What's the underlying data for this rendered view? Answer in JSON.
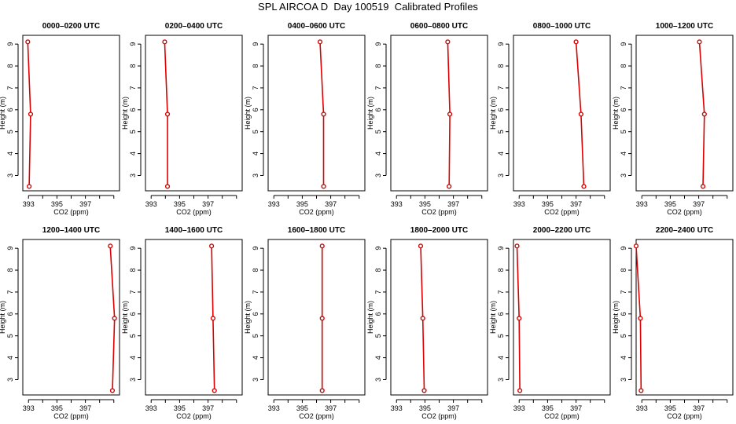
{
  "title": "SPL AIRCOA D  Day 100519  Calibrated Profiles",
  "colors": {
    "profile": "#dd0000",
    "axis": "#000000",
    "background": "#ffffff"
  },
  "chart_data": [
    {
      "type": "line",
      "title": "0000–0200 UTC",
      "xlabel": "CO2 (ppm)",
      "ylabel": "Height (m)",
      "xlim": [
        392.6,
        399.4
      ],
      "ylim": [
        2.3,
        9.4
      ],
      "xticks": [
        393,
        394,
        395,
        396,
        397,
        398,
        399
      ],
      "xticklabels": [
        "393",
        "",
        "395",
        "",
        "397",
        "",
        ""
      ],
      "yticks": [
        3,
        4,
        5,
        6,
        7,
        8,
        9
      ],
      "series": [
        {
          "points": [
            {
              "x": 393.05,
              "y": 2.5
            },
            {
              "x": 393.15,
              "y": 5.8
            },
            {
              "x": 392.95,
              "y": 9.1
            }
          ]
        }
      ]
    },
    {
      "type": "line",
      "title": "0200–0400 UTC",
      "xlabel": "CO2 (ppm)",
      "ylabel": "Height (m)",
      "xlim": [
        392.6,
        399.4
      ],
      "ylim": [
        2.3,
        9.4
      ],
      "xticks": [
        393,
        394,
        395,
        396,
        397,
        398,
        399
      ],
      "xticklabels": [
        "393",
        "",
        "395",
        "",
        "397",
        "",
        ""
      ],
      "yticks": [
        3,
        4,
        5,
        6,
        7,
        8,
        9
      ],
      "series": [
        {
          "points": [
            {
              "x": 394.15,
              "y": 2.5
            },
            {
              "x": 394.15,
              "y": 5.8
            },
            {
              "x": 393.95,
              "y": 9.1
            }
          ]
        }
      ]
    },
    {
      "type": "line",
      "title": "0400–0600 UTC",
      "xlabel": "CO2 (ppm)",
      "ylabel": "Height (m)",
      "xlim": [
        392.6,
        399.4
      ],
      "ylim": [
        2.3,
        9.4
      ],
      "xticks": [
        393,
        394,
        395,
        396,
        397,
        398,
        399
      ],
      "xticklabels": [
        "393",
        "",
        "395",
        "",
        "397",
        "",
        ""
      ],
      "yticks": [
        3,
        4,
        5,
        6,
        7,
        8,
        9
      ],
      "series": [
        {
          "points": [
            {
              "x": 396.5,
              "y": 2.5
            },
            {
              "x": 396.5,
              "y": 5.8
            },
            {
              "x": 396.25,
              "y": 9.1
            }
          ]
        }
      ]
    },
    {
      "type": "line",
      "title": "0600–0800 UTC",
      "xlabel": "CO2 (ppm)",
      "ylabel": "Height (m)",
      "xlim": [
        392.6,
        399.4
      ],
      "ylim": [
        2.3,
        9.4
      ],
      "xticks": [
        393,
        394,
        395,
        396,
        397,
        398,
        399
      ],
      "xticklabels": [
        "393",
        "",
        "395",
        "",
        "397",
        "",
        ""
      ],
      "yticks": [
        3,
        4,
        5,
        6,
        7,
        8,
        9
      ],
      "series": [
        {
          "points": [
            {
              "x": 396.7,
              "y": 2.5
            },
            {
              "x": 396.75,
              "y": 5.8
            },
            {
              "x": 396.6,
              "y": 9.1
            }
          ]
        }
      ]
    },
    {
      "type": "line",
      "title": "0800–1000 UTC",
      "xlabel": "CO2 (ppm)",
      "ylabel": "Height (m)",
      "xlim": [
        392.6,
        399.4
      ],
      "ylim": [
        2.3,
        9.4
      ],
      "xticks": [
        393,
        394,
        395,
        396,
        397,
        398,
        399
      ],
      "xticklabels": [
        "393",
        "",
        "395",
        "",
        "397",
        "",
        ""
      ],
      "yticks": [
        3,
        4,
        5,
        6,
        7,
        8,
        9
      ],
      "series": [
        {
          "points": [
            {
              "x": 397.55,
              "y": 2.5
            },
            {
              "x": 397.35,
              "y": 5.8
            },
            {
              "x": 397.0,
              "y": 9.1
            }
          ]
        }
      ]
    },
    {
      "type": "line",
      "title": "1000–1200 UTC",
      "xlabel": "CO2 (ppm)",
      "ylabel": "Height (m)",
      "xlim": [
        392.6,
        399.4
      ],
      "ylim": [
        2.3,
        9.4
      ],
      "xticks": [
        393,
        394,
        395,
        396,
        397,
        398,
        399
      ],
      "xticklabels": [
        "393",
        "",
        "395",
        "",
        "397",
        "",
        ""
      ],
      "yticks": [
        3,
        4,
        5,
        6,
        7,
        8,
        9
      ],
      "series": [
        {
          "points": [
            {
              "x": 397.3,
              "y": 2.5
            },
            {
              "x": 397.4,
              "y": 5.8
            },
            {
              "x": 397.05,
              "y": 9.1
            }
          ]
        }
      ]
    },
    {
      "type": "line",
      "title": "1200–1400 UTC",
      "xlabel": "CO2 (ppm)",
      "ylabel": "Height (m)",
      "xlim": [
        392.6,
        399.4
      ],
      "ylim": [
        2.3,
        9.4
      ],
      "xticks": [
        393,
        394,
        395,
        396,
        397,
        398,
        399
      ],
      "xticklabels": [
        "393",
        "",
        "395",
        "",
        "397",
        "",
        ""
      ],
      "yticks": [
        3,
        4,
        5,
        6,
        7,
        8,
        9
      ],
      "series": [
        {
          "points": [
            {
              "x": 398.9,
              "y": 2.5
            },
            {
              "x": 399.05,
              "y": 5.8
            },
            {
              "x": 398.75,
              "y": 9.1
            }
          ]
        }
      ]
    },
    {
      "type": "line",
      "title": "1400–1600 UTC",
      "xlabel": "CO2 (ppm)",
      "ylabel": "Height (m)",
      "xlim": [
        392.6,
        399.4
      ],
      "ylim": [
        2.3,
        9.4
      ],
      "xticks": [
        393,
        394,
        395,
        396,
        397,
        398,
        399
      ],
      "xticklabels": [
        "393",
        "",
        "395",
        "",
        "397",
        "",
        ""
      ],
      "yticks": [
        3,
        4,
        5,
        6,
        7,
        8,
        9
      ],
      "series": [
        {
          "points": [
            {
              "x": 397.45,
              "y": 2.5
            },
            {
              "x": 397.35,
              "y": 5.8
            },
            {
              "x": 397.25,
              "y": 9.1
            }
          ]
        }
      ]
    },
    {
      "type": "line",
      "title": "1600–1800 UTC",
      "xlabel": "CO2 (ppm)",
      "ylabel": "Height (m)",
      "xlim": [
        392.6,
        399.4
      ],
      "ylim": [
        2.3,
        9.4
      ],
      "xticks": [
        393,
        394,
        395,
        396,
        397,
        398,
        399
      ],
      "xticklabels": [
        "393",
        "",
        "395",
        "",
        "397",
        "",
        ""
      ],
      "yticks": [
        3,
        4,
        5,
        6,
        7,
        8,
        9
      ],
      "series": [
        {
          "points": [
            {
              "x": 396.4,
              "y": 2.5
            },
            {
              "x": 396.4,
              "y": 5.8
            },
            {
              "x": 396.4,
              "y": 9.1
            }
          ]
        }
      ]
    },
    {
      "type": "line",
      "title": "1800–2000 UTC",
      "xlabel": "CO2 (ppm)",
      "ylabel": "Height (m)",
      "xlim": [
        392.6,
        399.4
      ],
      "ylim": [
        2.3,
        9.4
      ],
      "xticks": [
        393,
        394,
        395,
        396,
        397,
        398,
        399
      ],
      "xticklabels": [
        "393",
        "",
        "395",
        "",
        "397",
        "",
        ""
      ],
      "yticks": [
        3,
        4,
        5,
        6,
        7,
        8,
        9
      ],
      "series": [
        {
          "points": [
            {
              "x": 394.95,
              "y": 2.5
            },
            {
              "x": 394.85,
              "y": 5.8
            },
            {
              "x": 394.7,
              "y": 9.1
            }
          ]
        }
      ]
    },
    {
      "type": "line",
      "title": "2000–2200 UTC",
      "xlabel": "CO2 (ppm)",
      "ylabel": "Height (m)",
      "xlim": [
        392.6,
        399.4
      ],
      "ylim": [
        2.3,
        9.4
      ],
      "xticks": [
        393,
        394,
        395,
        396,
        397,
        398,
        399
      ],
      "xticklabels": [
        "393",
        "",
        "395",
        "",
        "397",
        "",
        ""
      ],
      "yticks": [
        3,
        4,
        5,
        6,
        7,
        8,
        9
      ],
      "series": [
        {
          "points": [
            {
              "x": 393.05,
              "y": 2.5
            },
            {
              "x": 393.0,
              "y": 5.8
            },
            {
              "x": 392.85,
              "y": 9.1
            }
          ]
        }
      ]
    },
    {
      "type": "line",
      "title": "2200–2400 UTC",
      "xlabel": "CO2 (ppm)",
      "ylabel": "Height (m)",
      "xlim": [
        392.6,
        399.4
      ],
      "ylim": [
        2.3,
        9.4
      ],
      "xticks": [
        393,
        394,
        395,
        396,
        397,
        398,
        399
      ],
      "xticklabels": [
        "393",
        "",
        "395",
        "",
        "397",
        "",
        ""
      ],
      "yticks": [
        3,
        4,
        5,
        6,
        7,
        8,
        9
      ],
      "series": [
        {
          "points": [
            {
              "x": 392.95,
              "y": 2.5
            },
            {
              "x": 392.9,
              "y": 5.8
            },
            {
              "x": 392.6,
              "y": 9.1
            }
          ]
        }
      ]
    }
  ]
}
